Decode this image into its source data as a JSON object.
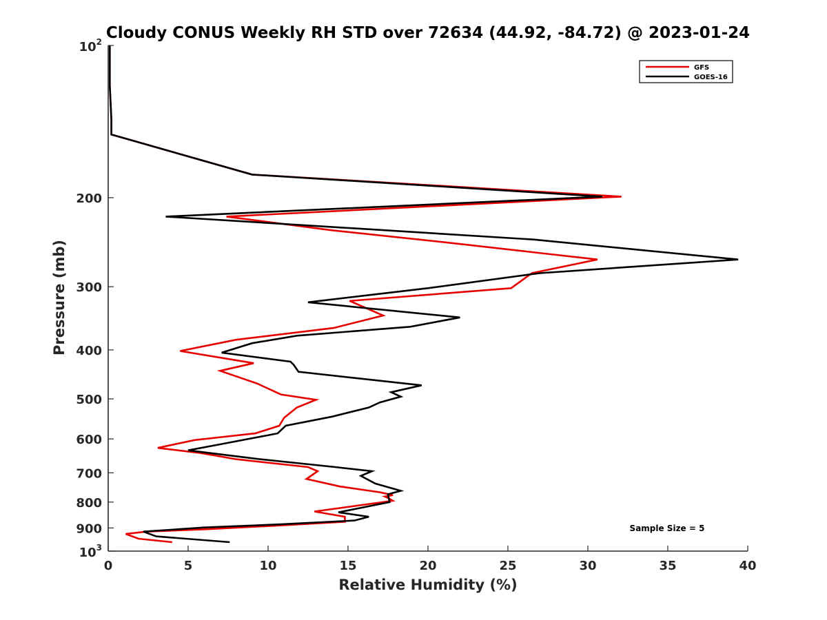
{
  "chart_data": {
    "type": "line",
    "title": "Cloudy CONUS Weekly RH STD over 72634 (44.92, -84.72) @ 2023-01-24",
    "xlabel": "Relative Humidity (%)",
    "ylabel": "Pressure (mb)",
    "xlim": [
      0,
      40
    ],
    "ylim": [
      100,
      1000
    ],
    "yscale": "log",
    "y_reversed": true,
    "grid": false,
    "legend_location": "top-right",
    "x_ticks": [
      "0",
      "5",
      "10",
      "15",
      "20",
      "25",
      "30",
      "35",
      "40"
    ],
    "y_ticks": [
      {
        "value": 100,
        "base": "10",
        "exp": "2"
      },
      {
        "value": 200,
        "label": "200"
      },
      {
        "value": 300,
        "label": "300"
      },
      {
        "value": 400,
        "label": "400"
      },
      {
        "value": 500,
        "label": "500"
      },
      {
        "value": 600,
        "label": "600"
      },
      {
        "value": 700,
        "label": "700"
      },
      {
        "value": 800,
        "label": "800"
      },
      {
        "value": 900,
        "label": "900"
      },
      {
        "value": 1000,
        "base": "10",
        "exp": "3"
      }
    ],
    "annotation": "Sample Size = 5",
    "series": [
      {
        "name": "GFS",
        "color": "#e60000",
        "points": [
          [
            0.1,
            100
          ],
          [
            0.1,
            120
          ],
          [
            0.2,
            140
          ],
          [
            0.2,
            150
          ],
          [
            9.0,
            180
          ],
          [
            32.1,
            199
          ],
          [
            7.4,
            218
          ],
          [
            14.0,
            232
          ],
          [
            21.0,
            245
          ],
          [
            30.6,
            265
          ],
          [
            26.5,
            282
          ],
          [
            25.2,
            302
          ],
          [
            15.1,
            320
          ],
          [
            17.2,
            342
          ],
          [
            14.1,
            362
          ],
          [
            8.0,
            382
          ],
          [
            4.5,
            402
          ],
          [
            9.1,
            425
          ],
          [
            7.0,
            440
          ],
          [
            9.3,
            466
          ],
          [
            10.8,
            490
          ],
          [
            13.0,
            502
          ],
          [
            11.8,
            520
          ],
          [
            11.0,
            545
          ],
          [
            10.7,
            565
          ],
          [
            9.2,
            585
          ],
          [
            5.4,
            603
          ],
          [
            3.1,
            625
          ],
          [
            5.8,
            640
          ],
          [
            8.0,
            658
          ],
          [
            12.5,
            682
          ],
          [
            13.1,
            695
          ],
          [
            12.4,
            720
          ],
          [
            14.5,
            745
          ],
          [
            17.0,
            765
          ],
          [
            17.8,
            775
          ],
          [
            17.3,
            780
          ],
          [
            17.5,
            785
          ],
          [
            17.8,
            795
          ],
          [
            12.9,
            835
          ],
          [
            14.8,
            855
          ],
          [
            14.8,
            875
          ],
          [
            10.6,
            890
          ],
          [
            6.2,
            905
          ],
          [
            2.4,
            915
          ],
          [
            1.1,
            925
          ],
          [
            1.9,
            945
          ],
          [
            4.0,
            960
          ]
        ]
      },
      {
        "name": "GOES-16",
        "color": "#000000",
        "points": [
          [
            0.1,
            100
          ],
          [
            0.1,
            120
          ],
          [
            0.2,
            140
          ],
          [
            0.2,
            150
          ],
          [
            9.0,
            180
          ],
          [
            30.9,
            199
          ],
          [
            3.6,
            218
          ],
          [
            26.6,
            242
          ],
          [
            39.4,
            265
          ],
          [
            27.0,
            282
          ],
          [
            20.0,
            302
          ],
          [
            12.5,
            322
          ],
          [
            22.0,
            345
          ],
          [
            18.9,
            360
          ],
          [
            11.8,
            375
          ],
          [
            9.0,
            388
          ],
          [
            7.1,
            405
          ],
          [
            11.4,
            422
          ],
          [
            11.6,
            428
          ],
          [
            11.9,
            442
          ],
          [
            19.6,
            470
          ],
          [
            17.7,
            485
          ],
          [
            18.3,
            495
          ],
          [
            17.0,
            508
          ],
          [
            16.3,
            520
          ],
          [
            14.0,
            542
          ],
          [
            11.1,
            565
          ],
          [
            10.6,
            585
          ],
          [
            7.0,
            615
          ],
          [
            5.0,
            632
          ],
          [
            9.3,
            657
          ],
          [
            14.2,
            682
          ],
          [
            16.5,
            695
          ],
          [
            15.8,
            710
          ],
          [
            16.7,
            735
          ],
          [
            18.3,
            760
          ],
          [
            17.5,
            772
          ],
          [
            17.6,
            800
          ],
          [
            14.4,
            838
          ],
          [
            16.3,
            855
          ],
          [
            15.4,
            870
          ],
          [
            10.8,
            885
          ],
          [
            6.0,
            898
          ],
          [
            2.2,
            915
          ],
          [
            3.0,
            935
          ],
          [
            7.6,
            960
          ]
        ]
      }
    ]
  }
}
